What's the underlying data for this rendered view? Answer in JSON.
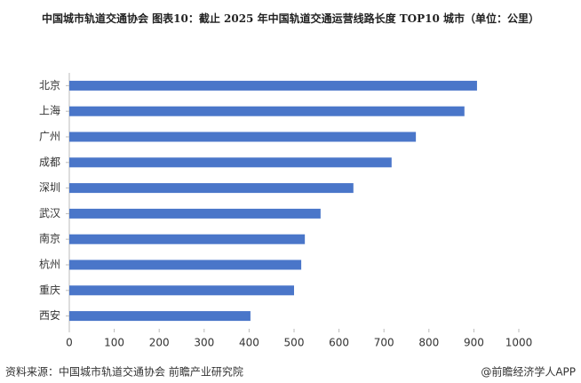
{
  "chart_data": {
    "type": "hbar",
    "title": "中国城市轨道交通协会  图表10：截止 2025 年中国轨道交通运营线路长度 TOP10 城市（单位：公里）",
    "categories": [
      "北京",
      "上海",
      "广州",
      "成都",
      "深圳",
      "武汉",
      "南京",
      "杭州",
      "重庆",
      "西安"
    ],
    "values": [
      907,
      879,
      771,
      717,
      632,
      559,
      524,
      516,
      500,
      403
    ],
    "color": "#4a76c9",
    "xlim": [
      0,
      1000
    ],
    "xticks": [
      0,
      100,
      200,
      300,
      400,
      500,
      600,
      700,
      800,
      900,
      1000
    ],
    "grid": false,
    "source": "资料来源：中国城市轨道交通协会 前瞻产业研究院",
    "credit": "@前瞻经济学人APP"
  }
}
